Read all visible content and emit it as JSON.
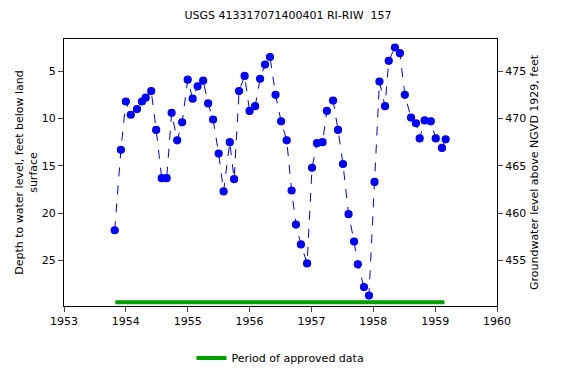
{
  "chart_data": {
    "type": "line",
    "title": "USGS 413317071400401 RI-RIW  157",
    "xlabel": "",
    "ylabel": "Depth to water level, feet below land\nsurface",
    "y2label": "Groundwater level above NGVD 1929, feet",
    "xlim": [
      1953,
      1960
    ],
    "xticks": [
      1953,
      1954,
      1955,
      1956,
      1957,
      1958,
      1959,
      1960
    ],
    "ylim": [
      29.8,
      1.6
    ],
    "yticks": [
      5,
      10,
      15,
      20,
      25
    ],
    "y2lim": [
      450.2,
      478.4
    ],
    "y2ticks": [
      455,
      460,
      465,
      470,
      475
    ],
    "grid": false,
    "legend": "bottom",
    "series": [
      {
        "color": "#0000ff",
        "marker": "circle-dot",
        "line_style": "dash",
        "x": [
          1953.82,
          1953.92,
          1954.0,
          1954.08,
          1954.18,
          1954.26,
          1954.32,
          1954.41,
          1954.49,
          1954.58,
          1954.66,
          1954.74,
          1954.83,
          1954.91,
          1955.0,
          1955.08,
          1955.16,
          1955.25,
          1955.33,
          1955.41,
          1955.5,
          1955.58,
          1955.68,
          1955.75,
          1955.83,
          1955.92,
          1956.0,
          1956.09,
          1956.17,
          1956.25,
          1956.33,
          1956.42,
          1956.51,
          1956.6,
          1956.68,
          1956.75,
          1956.83,
          1956.93,
          1957.01,
          1957.09,
          1957.18,
          1957.25,
          1957.35,
          1957.43,
          1957.51,
          1957.6,
          1957.69,
          1957.75,
          1957.85,
          1957.93,
          1958.02,
          1958.1,
          1958.19,
          1958.25,
          1958.35,
          1958.43,
          1958.51,
          1958.61,
          1958.69,
          1958.75,
          1958.83,
          1958.93,
          1959.01,
          1959.11,
          1959.17
        ],
        "values": [
          21.8,
          13.3,
          8.2,
          9.6,
          9.0,
          8.2,
          7.8,
          7.1,
          11.2,
          16.3,
          16.3,
          9.4,
          12.3,
          10.4,
          5.9,
          7.9,
          6.6,
          6.0,
          8.4,
          10.1,
          13.7,
          17.7,
          12.5,
          16.4,
          7.1,
          5.5,
          9.2,
          8.7,
          5.8,
          4.3,
          3.5,
          7.5,
          10.3,
          12.3,
          17.6,
          21.2,
          23.3,
          25.3,
          15.2,
          12.6,
          12.5,
          9.2,
          8.1,
          11.2,
          14.8,
          20.1,
          23.0,
          25.4,
          27.8,
          28.7,
          16.7,
          6.1,
          8.7,
          3.9,
          2.5,
          3.1,
          7.5,
          9.9,
          10.5,
          12.1,
          10.2,
          10.3,
          12.1,
          13.1,
          12.2
        ]
      },
      {
        "name": "Period of approved data",
        "color": "#00a000",
        "line_style": "solid",
        "x": [
          1953.83,
          1959.15
        ],
        "values": [
          29.4,
          29.4
        ]
      }
    ]
  }
}
